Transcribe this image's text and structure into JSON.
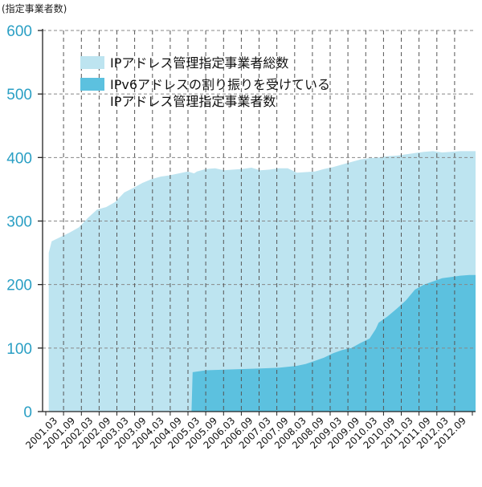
{
  "chart_data": {
    "type": "area",
    "y_unit_label": "(指定事業者数)",
    "ylim": [
      0,
      600
    ],
    "yticks": [
      0,
      100,
      200,
      300,
      400,
      500,
      600
    ],
    "x_labels": [
      "2001.03",
      "2001.09",
      "2002.03",
      "2002.09",
      "2003.03",
      "2003.09",
      "2004.03",
      "2004.09",
      "2005.03",
      "2005.09",
      "2006.03",
      "2006.09",
      "2007.03",
      "2007.09",
      "2008.03",
      "2008.09",
      "2009.03",
      "2009.09",
      "2010.03",
      "2010.09",
      "2011.03",
      "2011.09",
      "2012.03",
      "2012.09"
    ],
    "grid": true,
    "legend_position": "top-left",
    "colors": {
      "total": "#bde4f0",
      "ipv6": "#5cc1df",
      "axis_text": "#2a9fc4"
    },
    "series": [
      {
        "name": "IPアドレス管理指定事業者総数",
        "points": [
          [
            2001.17,
            250
          ],
          [
            2001.25,
            268
          ],
          [
            2001.5,
            275
          ],
          [
            2001.75,
            282
          ],
          [
            2002.0,
            290
          ],
          [
            2002.25,
            305
          ],
          [
            2002.5,
            318
          ],
          [
            2002.75,
            322
          ],
          [
            2003.0,
            330
          ],
          [
            2003.25,
            345
          ],
          [
            2003.5,
            352
          ],
          [
            2003.75,
            360
          ],
          [
            2004.0,
            366
          ],
          [
            2004.25,
            370
          ],
          [
            2004.5,
            372
          ],
          [
            2004.75,
            375
          ],
          [
            2005.0,
            378
          ],
          [
            2005.17,
            375
          ],
          [
            2005.25,
            378
          ],
          [
            2005.5,
            382
          ],
          [
            2005.75,
            383
          ],
          [
            2006.0,
            380
          ],
          [
            2006.25,
            381
          ],
          [
            2006.5,
            382
          ],
          [
            2006.75,
            384
          ],
          [
            2007.0,
            380
          ],
          [
            2007.25,
            381
          ],
          [
            2007.5,
            383
          ],
          [
            2007.75,
            383
          ],
          [
            2008.0,
            376
          ],
          [
            2008.25,
            377
          ],
          [
            2008.5,
            378
          ],
          [
            2008.75,
            382
          ],
          [
            2009.0,
            385
          ],
          [
            2009.25,
            389
          ],
          [
            2009.5,
            393
          ],
          [
            2009.75,
            397
          ],
          [
            2010.0,
            399
          ],
          [
            2010.25,
            400
          ],
          [
            2010.5,
            402
          ],
          [
            2010.75,
            403
          ],
          [
            2011.0,
            405
          ],
          [
            2011.25,
            407
          ],
          [
            2011.5,
            409
          ],
          [
            2011.75,
            410
          ],
          [
            2012.0,
            408
          ],
          [
            2012.25,
            409
          ],
          [
            2012.5,
            410
          ],
          [
            2012.75,
            410
          ],
          [
            2012.92,
            410
          ]
        ]
      },
      {
        "name": "IPv6アドレスの割り振りを受けているIPアドレス管理指定事業者数",
        "legend_lines": [
          "IPv6アドレスの割り振りを受けている",
          "IPアドレス管理指定事業者数"
        ],
        "points": [
          [
            2005.1,
            0
          ],
          [
            2005.13,
            62
          ],
          [
            2005.5,
            65
          ],
          [
            2006.0,
            66
          ],
          [
            2006.5,
            67
          ],
          [
            2007.0,
            68
          ],
          [
            2007.5,
            69
          ],
          [
            2008.0,
            72
          ],
          [
            2008.25,
            75
          ],
          [
            2008.5,
            80
          ],
          [
            2008.75,
            85
          ],
          [
            2009.0,
            92
          ],
          [
            2009.25,
            97
          ],
          [
            2009.5,
            100
          ],
          [
            2009.75,
            108
          ],
          [
            2010.0,
            115
          ],
          [
            2010.17,
            130
          ],
          [
            2010.25,
            140
          ],
          [
            2010.5,
            150
          ],
          [
            2010.75,
            162
          ],
          [
            2011.0,
            175
          ],
          [
            2011.25,
            192
          ],
          [
            2011.5,
            200
          ],
          [
            2011.75,
            205
          ],
          [
            2012.0,
            210
          ],
          [
            2012.25,
            212
          ],
          [
            2012.5,
            214
          ],
          [
            2012.75,
            215
          ],
          [
            2012.92,
            215
          ]
        ]
      }
    ]
  }
}
